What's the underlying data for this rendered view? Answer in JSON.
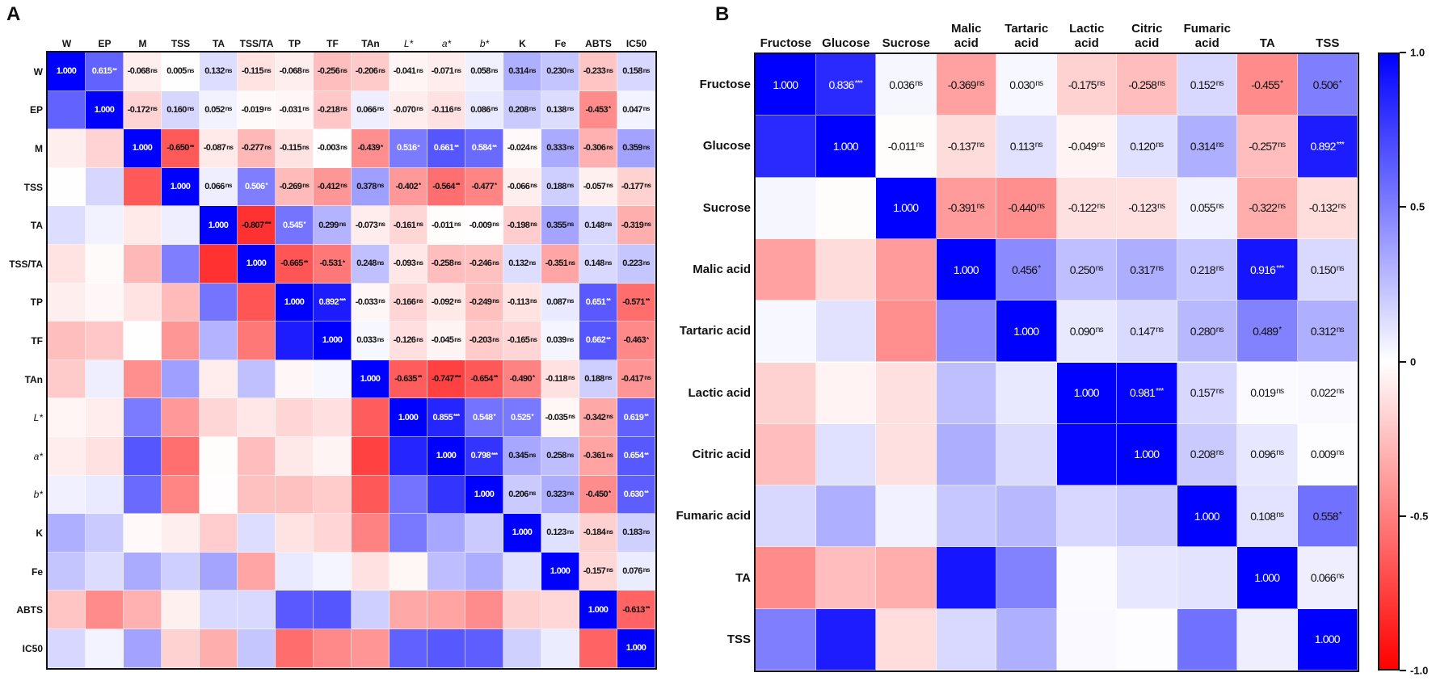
{
  "panels": {
    "a_label": "A",
    "b_label": "B"
  },
  "colorbar": {
    "ticks": [
      "1.0",
      "0.5",
      "0",
      "-0.5",
      "-1.0"
    ],
    "tick_values": [
      1,
      0.5,
      0,
      -0.5,
      -1
    ],
    "max_color": "#0000ff",
    "mid_color": "#ffffff",
    "min_color": "#ff0000"
  },
  "chart_data": [
    {
      "type": "heatmap",
      "title": "A",
      "labels": [
        "W",
        "EP",
        "M",
        "TSS",
        "TA",
        "TSS/TA",
        "TP",
        "TF",
        "TAn",
        "L*",
        "a*",
        "b*",
        "K",
        "Fe",
        "ABTS",
        "IC50"
      ],
      "italic_labels": [
        "L*",
        "a*",
        "b*"
      ],
      "range": [
        -1,
        1
      ],
      "upper_values": [
        [
          1.0,
          0.615,
          -0.068,
          0.005,
          0.132,
          -0.115,
          -0.068,
          -0.256,
          -0.206,
          -0.041,
          -0.071,
          0.058,
          0.314,
          0.23,
          -0.233,
          0.158
        ],
        [
          1.0,
          -0.172,
          0.16,
          0.052,
          -0.019,
          -0.031,
          -0.218,
          0.066,
          -0.07,
          -0.116,
          0.086,
          0.208,
          0.138,
          -0.453,
          0.047
        ],
        [
          1.0,
          -0.65,
          -0.087,
          -0.277,
          -0.115,
          -0.003,
          -0.439,
          0.516,
          0.661,
          0.584,
          -0.024,
          0.333,
          -0.306,
          0.359
        ],
        [
          1.0,
          0.066,
          0.506,
          -0.269,
          -0.412,
          0.378,
          -0.402,
          -0.564,
          -0.477,
          -0.066,
          0.188,
          -0.057,
          -0.177
        ],
        [
          1.0,
          -0.807,
          0.545,
          0.299,
          -0.073,
          -0.161,
          -0.011,
          -0.009,
          -0.198,
          0.355,
          0.148,
          -0.319
        ],
        [
          1.0,
          -0.665,
          -0.531,
          0.248,
          -0.093,
          -0.258,
          -0.246,
          0.132,
          -0.351,
          0.148,
          0.223
        ],
        [
          1.0,
          0.892,
          -0.033,
          -0.166,
          -0.092,
          -0.249,
          -0.113,
          0.087,
          0.651,
          -0.571
        ],
        [
          1.0,
          0.033,
          -0.126,
          -0.045,
          -0.203,
          -0.165,
          0.039,
          0.662,
          -0.463
        ],
        [
          1.0,
          -0.635,
          -0.747,
          -0.654,
          -0.49,
          -0.118,
          0.188,
          -0.417
        ],
        [
          1.0,
          0.855,
          0.548,
          0.525,
          -0.035,
          -0.342,
          0.619
        ],
        [
          1.0,
          0.798,
          0.345,
          0.258,
          -0.361,
          0.654
        ],
        [
          1.0,
          0.206,
          0.323,
          -0.45,
          0.63
        ],
        [
          1.0,
          0.123,
          -0.184,
          0.183
        ],
        [
          1.0,
          -0.157,
          0.076
        ],
        [
          1.0,
          -0.613
        ],
        [
          1.0
        ]
      ],
      "upper_significance": [
        [
          "",
          "**",
          "ns",
          "ns",
          "ns",
          "ns",
          "ns",
          "ns",
          "ns",
          "ns",
          "ns",
          "ns",
          "ns",
          "ns",
          "ns",
          "ns"
        ],
        [
          "",
          "ns",
          "ns",
          "ns",
          "ns",
          "ns",
          "ns",
          "ns",
          "ns",
          "ns",
          "ns",
          "ns",
          "ns",
          "*",
          "ns"
        ],
        [
          "",
          "**",
          "ns",
          "ns",
          "ns",
          "ns",
          "*",
          "*",
          "**",
          "**",
          "ns",
          "ns",
          "ns",
          "ns"
        ],
        [
          "",
          "ns",
          "*",
          "ns",
          "ns",
          "ns",
          "*",
          "**",
          "*",
          "ns",
          "ns",
          "ns",
          "ns"
        ],
        [
          "",
          "***",
          "*",
          "ns",
          "ns",
          "ns",
          "ns",
          "ns",
          "ns",
          "ns",
          "ns",
          "ns"
        ],
        [
          "",
          "**",
          "*",
          "ns",
          "ns",
          "ns",
          "ns",
          "ns",
          "ns",
          "ns",
          "ns"
        ],
        [
          "",
          "***",
          "ns",
          "ns",
          "ns",
          "ns",
          "ns",
          "ns",
          "**",
          "**"
        ],
        [
          "",
          "ns",
          "ns",
          "ns",
          "ns",
          "ns",
          "ns",
          "**",
          "*"
        ],
        [
          "",
          "**",
          "***",
          "**",
          "*",
          "ns",
          "ns",
          "ns"
        ],
        [
          "",
          "***",
          "*",
          "*",
          "ns",
          "ns",
          "**"
        ],
        [
          "",
          "***",
          "ns",
          "ns",
          "ns",
          "**"
        ],
        [
          "",
          "ns",
          "ns",
          "*",
          "**"
        ],
        [
          "",
          "ns",
          "ns",
          "ns"
        ],
        [
          "",
          "ns",
          "ns"
        ],
        [
          "",
          "**"
        ],
        [
          ""
        ]
      ]
    },
    {
      "type": "heatmap",
      "title": "B",
      "labels": [
        "Fructose",
        "Glucose",
        "Sucrose",
        "Malic acid",
        "Tartaric acid",
        "Lactic acid",
        "Citric acid",
        "Fumaric acid",
        "TA",
        "TSS"
      ],
      "range": [
        -1,
        1
      ],
      "upper_values": [
        [
          1.0,
          0.836,
          0.036,
          -0.369,
          0.03,
          -0.175,
          -0.258,
          0.152,
          -0.455,
          0.506
        ],
        [
          1.0,
          -0.011,
          -0.137,
          0.113,
          -0.049,
          0.12,
          0.314,
          -0.257,
          0.892
        ],
        [
          1.0,
          -0.391,
          -0.44,
          -0.122,
          -0.123,
          0.055,
          -0.322,
          -0.132
        ],
        [
          1.0,
          0.456,
          0.25,
          0.317,
          0.218,
          0.916,
          0.15
        ],
        [
          1.0,
          0.09,
          0.147,
          0.28,
          0.489,
          0.312
        ],
        [
          1.0,
          0.981,
          0.157,
          0.019,
          0.022
        ],
        [
          1.0,
          0.208,
          0.096,
          0.009
        ],
        [
          1.0,
          0.108,
          0.558
        ],
        [
          1.0,
          0.066
        ],
        [
          1.0
        ]
      ],
      "upper_significance": [
        [
          "",
          "***",
          "ns",
          "ns",
          "ns",
          "ns",
          "ns",
          "ns",
          "*",
          "*"
        ],
        [
          "",
          "ns",
          "ns",
          "ns",
          "ns",
          "ns",
          "ns",
          "ns",
          "***"
        ],
        [
          "",
          "ns",
          "ns",
          "ns",
          "ns",
          "ns",
          "ns",
          "ns"
        ],
        [
          "",
          "*",
          "ns",
          "ns",
          "ns",
          "***",
          "ns"
        ],
        [
          "",
          "ns",
          "ns",
          "ns",
          "*",
          "ns"
        ],
        [
          "",
          "***",
          "ns",
          "ns",
          "ns"
        ],
        [
          "",
          "ns",
          "ns",
          "ns"
        ],
        [
          "",
          "ns",
          "*"
        ],
        [
          "",
          "ns"
        ],
        [
          ""
        ]
      ]
    }
  ]
}
